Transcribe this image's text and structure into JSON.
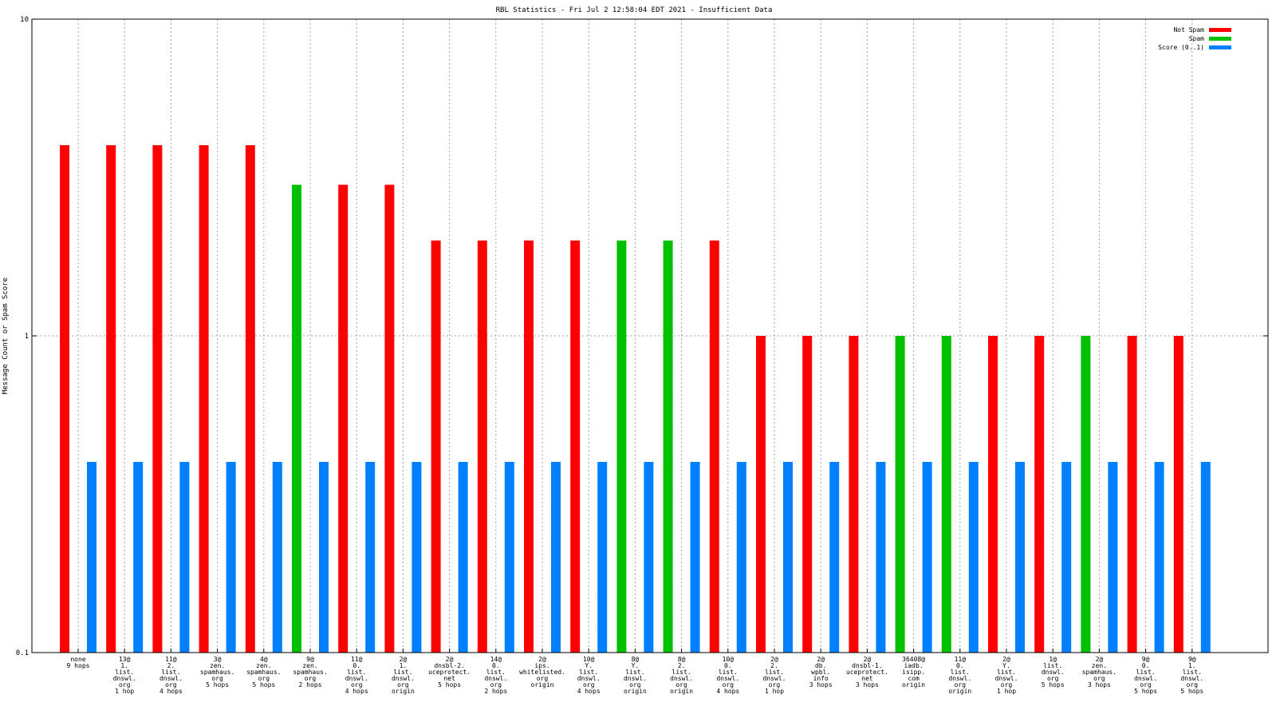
{
  "chart_data": {
    "type": "bar",
    "title": "RBL Statistics - Fri Jul  2 12:58:04 EDT 2021 - Insufficient Data",
    "ylabel": "Message Count or Spam Score",
    "xlabel": "",
    "yscale": "log",
    "ylim": [
      0.1,
      10
    ],
    "yticks": [
      "0.1",
      "1",
      "10"
    ],
    "grid": true,
    "legend_position": "top-right",
    "colors": {
      "not_spam": "#ff0000",
      "spam": "#00c000",
      "score": "#0080ff"
    },
    "categories": [
      [
        "none",
        "9 hops"
      ],
      [
        "13@",
        "1.",
        "list.",
        "dnswl.",
        "org",
        "1 hop"
      ],
      [
        "11@",
        "2.",
        "list.",
        "dnswl.",
        "org",
        "4 hops"
      ],
      [
        "3@",
        "zen.",
        "spamhaus.",
        "org",
        "5 hops"
      ],
      [
        "4@",
        "zen.",
        "spamhaus.",
        "org",
        "5 hops"
      ],
      [
        "9@",
        "zen.",
        "spamhaus.",
        "org",
        "2 hops"
      ],
      [
        "11@",
        "0.",
        "list.",
        "dnswl.",
        "org",
        "4 hops"
      ],
      [
        "2@",
        "1.",
        "list.",
        "dnswl.",
        "org",
        "origin"
      ],
      [
        "2@",
        "dnsbl-2.",
        "uceprotect.",
        "net",
        "5 hops"
      ],
      [
        "14@",
        "0.",
        "list.",
        "dnswl.",
        "org",
        "2 hops"
      ],
      [
        "2@",
        "ips.",
        "whitelisted.",
        "org",
        "origin"
      ],
      [
        "10@",
        "Y.",
        "list.",
        "dnswl.",
        "org",
        "4 hops"
      ],
      [
        "8@",
        "Y.",
        "list.",
        "dnswl.",
        "org",
        "origin"
      ],
      [
        "8@",
        "2.",
        "list.",
        "dnswl.",
        "org",
        "origin"
      ],
      [
        "10@",
        "0.",
        "list.",
        "dnswl.",
        "org",
        "4 hops"
      ],
      [
        "2@",
        "2.",
        "list.",
        "dnswl.",
        "org",
        "1 hop"
      ],
      [
        "2@",
        "db.",
        "wpbl.",
        "info",
        "3 hops"
      ],
      [
        "2@",
        "dnsbl-1.",
        "uceprotect.",
        "net",
        "3 hops"
      ],
      [
        "36408@",
        "iadb.",
        "isipp.",
        "com",
        "origin"
      ],
      [
        "11@",
        "0.",
        "list.",
        "dnswl.",
        "org",
        "origin"
      ],
      [
        "2@",
        "Y.",
        "list.",
        "dnswl.",
        "org",
        "1 hop"
      ],
      [
        "1@",
        "list.",
        "dnswl.",
        "org",
        "5 hops"
      ],
      [
        "2@",
        "zen.",
        "spamhaus.",
        "org",
        "3 hops"
      ],
      [
        "9@",
        "0.",
        "list.",
        "dnswl.",
        "org",
        "5 hops"
      ],
      [
        "9@",
        "1.",
        "list.",
        "dnswl.",
        "org",
        "5 hops"
      ]
    ],
    "series": [
      {
        "name": "Not Spam",
        "key": "not_spam",
        "values": [
          4,
          4,
          4,
          4,
          4,
          0,
          3,
          3,
          2,
          2,
          2,
          2,
          0,
          0,
          2,
          1,
          1,
          1,
          0,
          0,
          1,
          1,
          0,
          1,
          1
        ]
      },
      {
        "name": "Spam",
        "key": "spam",
        "values": [
          0,
          0,
          0,
          0,
          0,
          3,
          0,
          0,
          0,
          0,
          0,
          0,
          2,
          2,
          0,
          0,
          0,
          0,
          1,
          1,
          0,
          0,
          1,
          0,
          0
        ]
      },
      {
        "name": "Score (0..1)",
        "key": "score",
        "values": [
          0.4,
          0.4,
          0.4,
          0.4,
          0.4,
          0.4,
          0.4,
          0.4,
          0.4,
          0.4,
          0.4,
          0.4,
          0.4,
          0.4,
          0.4,
          0.4,
          0.4,
          0.4,
          0.4,
          0.4,
          0.4,
          0.4,
          0.4,
          0.4,
          0.4
        ]
      }
    ]
  }
}
